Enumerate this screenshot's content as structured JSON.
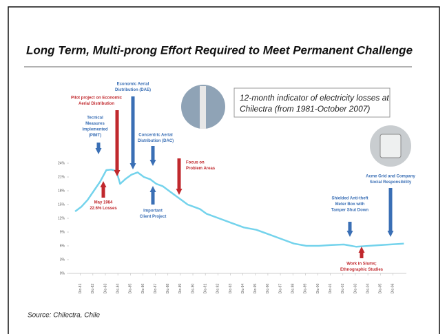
{
  "chart_data": {
    "type": "line",
    "title": "Long Term, Multi-prong Effort Required to Meet Permanent Challenge",
    "note_lines": [
      "12-month indicator of electricity losses at",
      "Chilectra (from 1981-October 2007)"
    ],
    "source": "Source: Chilectra, Chile",
    "color": "#74d3ec",
    "x": [
      1981.5,
      1982.0,
      1982.5,
      1983.0,
      1983.5,
      1984.0,
      1984.4,
      1984.8,
      1985.1,
      1985.5,
      1986.0,
      1986.5,
      1987.0,
      1987.5,
      1988.0,
      1988.5,
      1989.0,
      1989.5,
      1990.0,
      1990.5,
      1991.0,
      1991.5,
      1992.0,
      1993.0,
      1994.0,
      1995.0,
      1996.0,
      1997.0,
      1998.0,
      1999.0,
      2000.0,
      2001.0,
      2002.0,
      2003.0,
      2004.0,
      2005.0,
      2006.0,
      2007.8
    ],
    "values": [
      13.5,
      14.5,
      16,
      18,
      20,
      22.5,
      22.6,
      22.3,
      19.5,
      20.5,
      21.5,
      22,
      21,
      20.5,
      19.5,
      19,
      18,
      17,
      16,
      15,
      14.5,
      14,
      13,
      12,
      11,
      10,
      9.5,
      8.5,
      7.5,
      6.5,
      6,
      6,
      6.2,
      6.3,
      5.8,
      6,
      6.2,
      6.5
    ],
    "xlim": [
      1981,
      2008
    ],
    "xticks": [
      {
        "value": 1981.92,
        "label": "Dic-81"
      },
      {
        "value": 1982.92,
        "label": "Dic-82"
      },
      {
        "value": 1983.92,
        "label": "Dic-83"
      },
      {
        "value": 1984.92,
        "label": "Dic-84"
      },
      {
        "value": 1985.92,
        "label": "Dic-85"
      },
      {
        "value": 1986.92,
        "label": "Dic-86"
      },
      {
        "value": 1987.92,
        "label": "Dic-87"
      },
      {
        "value": 1988.92,
        "label": "Dic-88"
      },
      {
        "value": 1989.92,
        "label": "Dic-89"
      },
      {
        "value": 1990.92,
        "label": "Dic-90"
      },
      {
        "value": 1991.92,
        "label": "Dic-91"
      },
      {
        "value": 1992.92,
        "label": "Dic-92"
      },
      {
        "value": 1993.92,
        "label": "Dic-93"
      },
      {
        "value": 1994.92,
        "label": "Dic-94"
      },
      {
        "value": 1995.92,
        "label": "Dic-95"
      },
      {
        "value": 1996.92,
        "label": "Dic-96"
      },
      {
        "value": 1997.92,
        "label": "Dic-97"
      },
      {
        "value": 1998.92,
        "label": "Dic-98"
      },
      {
        "value": 1999.92,
        "label": "Dic-99"
      },
      {
        "value": 2000.92,
        "label": "Dic-00"
      },
      {
        "value": 2001.92,
        "label": "Dic-01"
      },
      {
        "value": 2002.92,
        "label": "Dic-02"
      },
      {
        "value": 2003.92,
        "label": "Dic-03"
      },
      {
        "value": 2004.92,
        "label": "Dic-04"
      },
      {
        "value": 2005.92,
        "label": "Dic-05"
      },
      {
        "value": 2006.92,
        "label": "Dic-06"
      }
    ],
    "ylim": [
      0,
      24
    ],
    "yticks": [
      {
        "value": 0,
        "label": "0%"
      },
      {
        "value": 3,
        "label": "3%"
      },
      {
        "value": 6,
        "label": "6%"
      },
      {
        "value": 9,
        "label": "9%"
      },
      {
        "value": 12,
        "label": "12%"
      },
      {
        "value": 15,
        "label": "15%"
      },
      {
        "value": 18,
        "label": "18%"
      },
      {
        "value": 21,
        "label": "21%"
      },
      {
        "value": 24,
        "label": "24%"
      }
    ],
    "annotations": [
      {
        "lines": [
          "Pilot project on Economic",
          "Aerial Distribution"
        ],
        "color": "#c0282d"
      },
      {
        "lines": [
          "Economic Aerial",
          "Distribution (DAE)"
        ],
        "color": "#3a6fb5"
      },
      {
        "lines": [
          "Tecnical",
          "Measures",
          "Implemented",
          "(PIMT)"
        ],
        "color": "#3a6fb5"
      },
      {
        "lines": [
          "Concentric Aerial",
          "Distribution (DAC)"
        ],
        "color": "#3a6fb5"
      },
      {
        "lines": [
          "Focus on",
          "Problem Areas"
        ],
        "color": "#c0282d"
      },
      {
        "lines": [
          "May 1984",
          "22.6% Losses"
        ],
        "color": "#c0282d"
      },
      {
        "lines": [
          "Important",
          "Client Project"
        ],
        "color": "#3a6fb5"
      },
      {
        "lines": [
          "Shielded Anti-theft",
          "Meter Box with",
          "Tamper Shut Down"
        ],
        "color": "#3a6fb5"
      },
      {
        "lines": [
          "Acme Grid and Company",
          "Social Responsibility"
        ],
        "color": "#3a6fb5"
      },
      {
        "lines": [
          "Work in Slums;",
          "Ethnographic Studies"
        ],
        "color": "#c0282d"
      }
    ]
  }
}
